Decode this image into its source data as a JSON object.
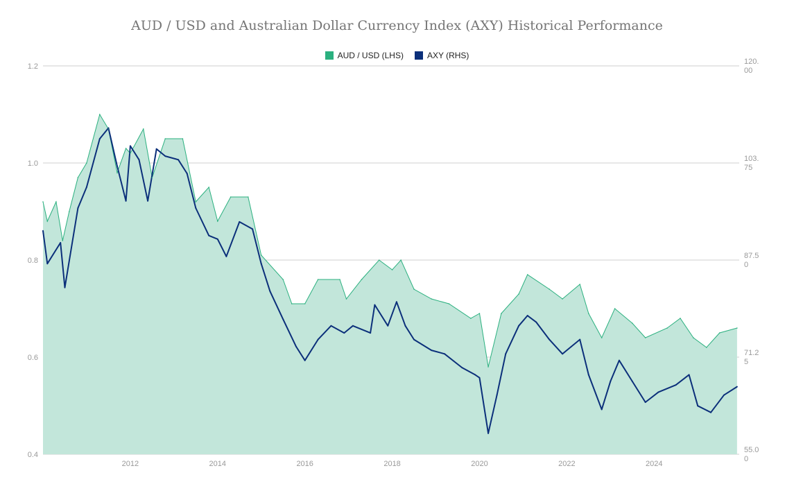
{
  "chart_data": {
    "type": "area",
    "title": "AUD / USD and Australian Dollar Currency Index (AXY) Historical Performance",
    "legend_position": "top",
    "grid": true,
    "x_ticks": [
      "2012",
      "2014",
      "2016",
      "2018",
      "2020",
      "2022",
      "2024"
    ],
    "x_range": [
      2010.0,
      2025.95
    ],
    "left_axis": {
      "ticks": [
        "0.4",
        "0.6",
        "0.8",
        "1.0",
        "1.2"
      ],
      "ylim": [
        0.4,
        1.2
      ]
    },
    "right_axis": {
      "ticks": [
        "55.00",
        "71.25",
        "87.50",
        "103.75",
        "120.00"
      ],
      "ylim": [
        55,
        120
      ]
    },
    "series": [
      {
        "name": "AUD / USD (LHS)",
        "axis": "left",
        "type": "area",
        "color": "#2bb07f",
        "fill": "#c2e6da",
        "x": [
          2010.0,
          2010.1,
          2010.3,
          2010.45,
          2010.6,
          2010.8,
          2011.0,
          2011.3,
          2011.5,
          2011.7,
          2011.9,
          2012.0,
          2012.3,
          2012.5,
          2012.8,
          2013.2,
          2013.5,
          2013.8,
          2014.0,
          2014.3,
          2014.7,
          2015.0,
          2015.5,
          2015.7,
          2016.0,
          2016.3,
          2016.8,
          2016.95,
          2017.3,
          2017.7,
          2018.0,
          2018.2,
          2018.5,
          2018.9,
          2019.3,
          2019.8,
          2020.0,
          2020.2,
          2020.5,
          2020.9,
          2021.1,
          2021.6,
          2021.9,
          2022.3,
          2022.5,
          2022.8,
          2023.1,
          2023.5,
          2023.8,
          2024.3,
          2024.6,
          2024.9,
          2025.2,
          2025.5,
          2025.9
        ],
        "values": [
          0.92,
          0.88,
          0.92,
          0.84,
          0.9,
          0.97,
          1.0,
          1.1,
          1.07,
          0.98,
          1.03,
          1.02,
          1.07,
          0.97,
          1.05,
          1.05,
          0.92,
          0.95,
          0.88,
          0.93,
          0.93,
          0.81,
          0.76,
          0.71,
          0.71,
          0.76,
          0.76,
          0.72,
          0.76,
          0.8,
          0.78,
          0.8,
          0.74,
          0.72,
          0.71,
          0.68,
          0.69,
          0.58,
          0.69,
          0.73,
          0.77,
          0.74,
          0.72,
          0.75,
          0.69,
          0.64,
          0.7,
          0.67,
          0.64,
          0.66,
          0.68,
          0.64,
          0.62,
          0.65,
          0.66
        ]
      },
      {
        "name": "AXY (RHS)",
        "axis": "right",
        "type": "line",
        "color": "#0b2f7a",
        "x": [
          2010.0,
          2010.1,
          2010.4,
          2010.5,
          2010.8,
          2011.0,
          2011.3,
          2011.5,
          2011.7,
          2011.9,
          2012.0,
          2012.2,
          2012.4,
          2012.6,
          2012.8,
          2013.1,
          2013.3,
          2013.5,
          2013.8,
          2014.0,
          2014.2,
          2014.5,
          2014.8,
          2015.0,
          2015.2,
          2015.5,
          2015.8,
          2016.0,
          2016.3,
          2016.6,
          2016.9,
          2017.1,
          2017.5,
          2017.6,
          2017.9,
          2018.1,
          2018.3,
          2018.5,
          2018.9,
          2019.2,
          2019.6,
          2019.9,
          2020.0,
          2020.2,
          2020.4,
          2020.6,
          2020.9,
          2021.1,
          2021.3,
          2021.6,
          2021.9,
          2022.1,
          2022.3,
          2022.5,
          2022.8,
          2023.0,
          2023.2,
          2023.5,
          2023.8,
          2024.1,
          2024.5,
          2024.8,
          2025.0,
          2025.3,
          2025.6,
          2025.9
        ],
        "values": [
          92.4,
          86.9,
          90.4,
          82.9,
          96.2,
          99.7,
          107.8,
          109.6,
          103.2,
          97.4,
          106.6,
          104.3,
          97.4,
          106.1,
          104.9,
          104.3,
          102.0,
          96.2,
          91.6,
          91.0,
          88.1,
          93.9,
          92.7,
          86.9,
          82.3,
          77.6,
          73.0,
          70.7,
          74.2,
          76.5,
          75.3,
          76.5,
          75.3,
          80.0,
          76.5,
          80.5,
          76.5,
          74.2,
          72.4,
          71.8,
          69.5,
          68.3,
          67.8,
          58.5,
          64.9,
          71.8,
          76.5,
          78.2,
          77.1,
          74.2,
          71.8,
          73.0,
          74.2,
          68.3,
          62.5,
          67.2,
          70.7,
          67.2,
          63.7,
          65.4,
          66.6,
          68.3,
          63.1,
          62.0,
          64.9,
          66.3
        ]
      }
    ]
  }
}
